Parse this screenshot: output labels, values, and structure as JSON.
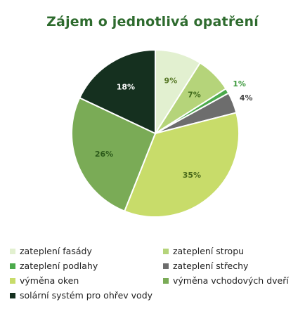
{
  "chart_data": {
    "type": "pie",
    "title": "Zájem o jednotlivá opatření",
    "slices": [
      {
        "label": "zateplení fasády",
        "value": 9,
        "display": "9%",
        "color": "#e2f0d0",
        "label_color": "#5a7a2a"
      },
      {
        "label": "zateplení stropu",
        "value": 7,
        "display": "7%",
        "color": "#b5d47a",
        "label_color": "#3f6a1a"
      },
      {
        "label": "zateplení podlahy",
        "value": 1,
        "display": "1%",
        "color": "#4caa4c",
        "label_color": "#3e9a3e"
      },
      {
        "label": "zateplení střechy",
        "value": 4,
        "display": "4%",
        "color": "#6d6d6d",
        "label_color": "#444444"
      },
      {
        "label": "výměna oken",
        "value": 35,
        "display": "35%",
        "color": "#c8dc6a",
        "label_color": "#4a6a1a"
      },
      {
        "label": "výměna vchodových dveří",
        "value": 26,
        "display": "26%",
        "color": "#7aab56",
        "label_color": "#2c5a1a"
      },
      {
        "label": "solární systém pro ohřev vody",
        "value": 18,
        "display": "18%",
        "color": "#15301f",
        "label_color": "#ffffff"
      }
    ],
    "legend_position": "bottom"
  }
}
